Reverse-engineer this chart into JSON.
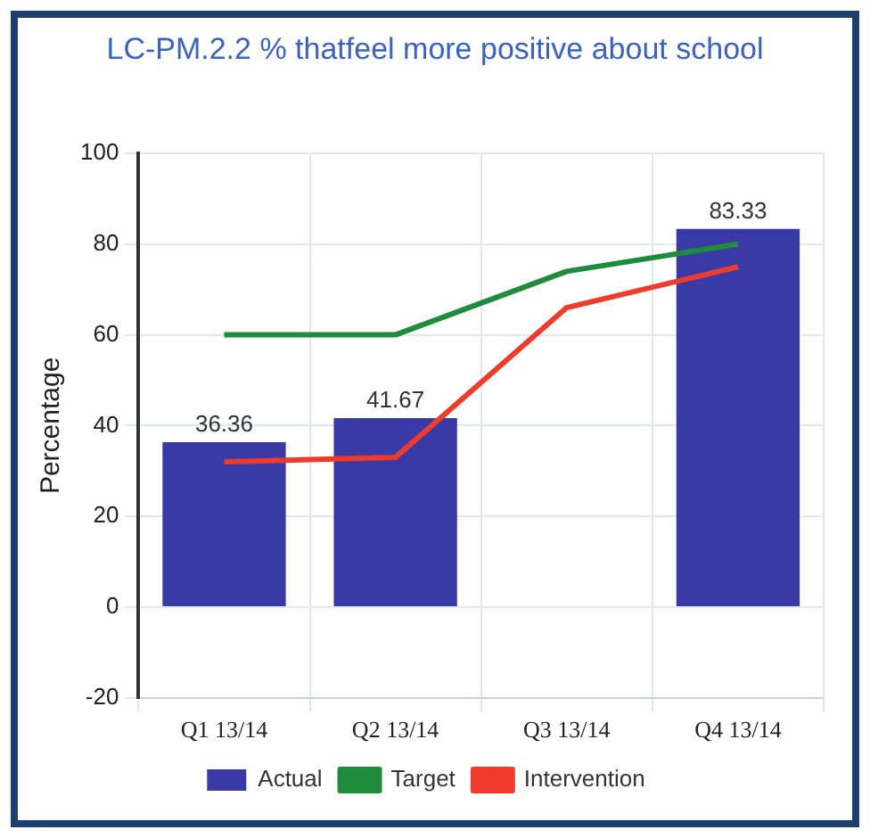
{
  "chart_data": {
    "type": "bar",
    "title": "LC-PM.2.2 % thatfeel more positive about school",
    "ylabel": "Percentage",
    "categories": [
      "Q1 13/14",
      "Q2 13/14",
      "Q3 13/14",
      "Q4 13/14"
    ],
    "series": [
      {
        "name": "Actual",
        "color": "#3a3aa6",
        "values": [
          36.36,
          41.67,
          null,
          83.33
        ],
        "value_labels": [
          "36.36",
          "41.67",
          null,
          "83.33"
        ]
      },
      {
        "name": "Target",
        "type": "line",
        "color": "#1e8c3c",
        "values": [
          60,
          60,
          74,
          80
        ]
      },
      {
        "name": "Intervention",
        "type": "line",
        "color": "#ee3b2b",
        "values": [
          32,
          33,
          66,
          75
        ]
      }
    ],
    "ylim": [
      -20,
      100
    ],
    "yticks": [
      -20,
      0,
      20,
      40,
      60,
      80,
      100
    ],
    "grid": true,
    "legend": "bottom",
    "marker": "none"
  }
}
